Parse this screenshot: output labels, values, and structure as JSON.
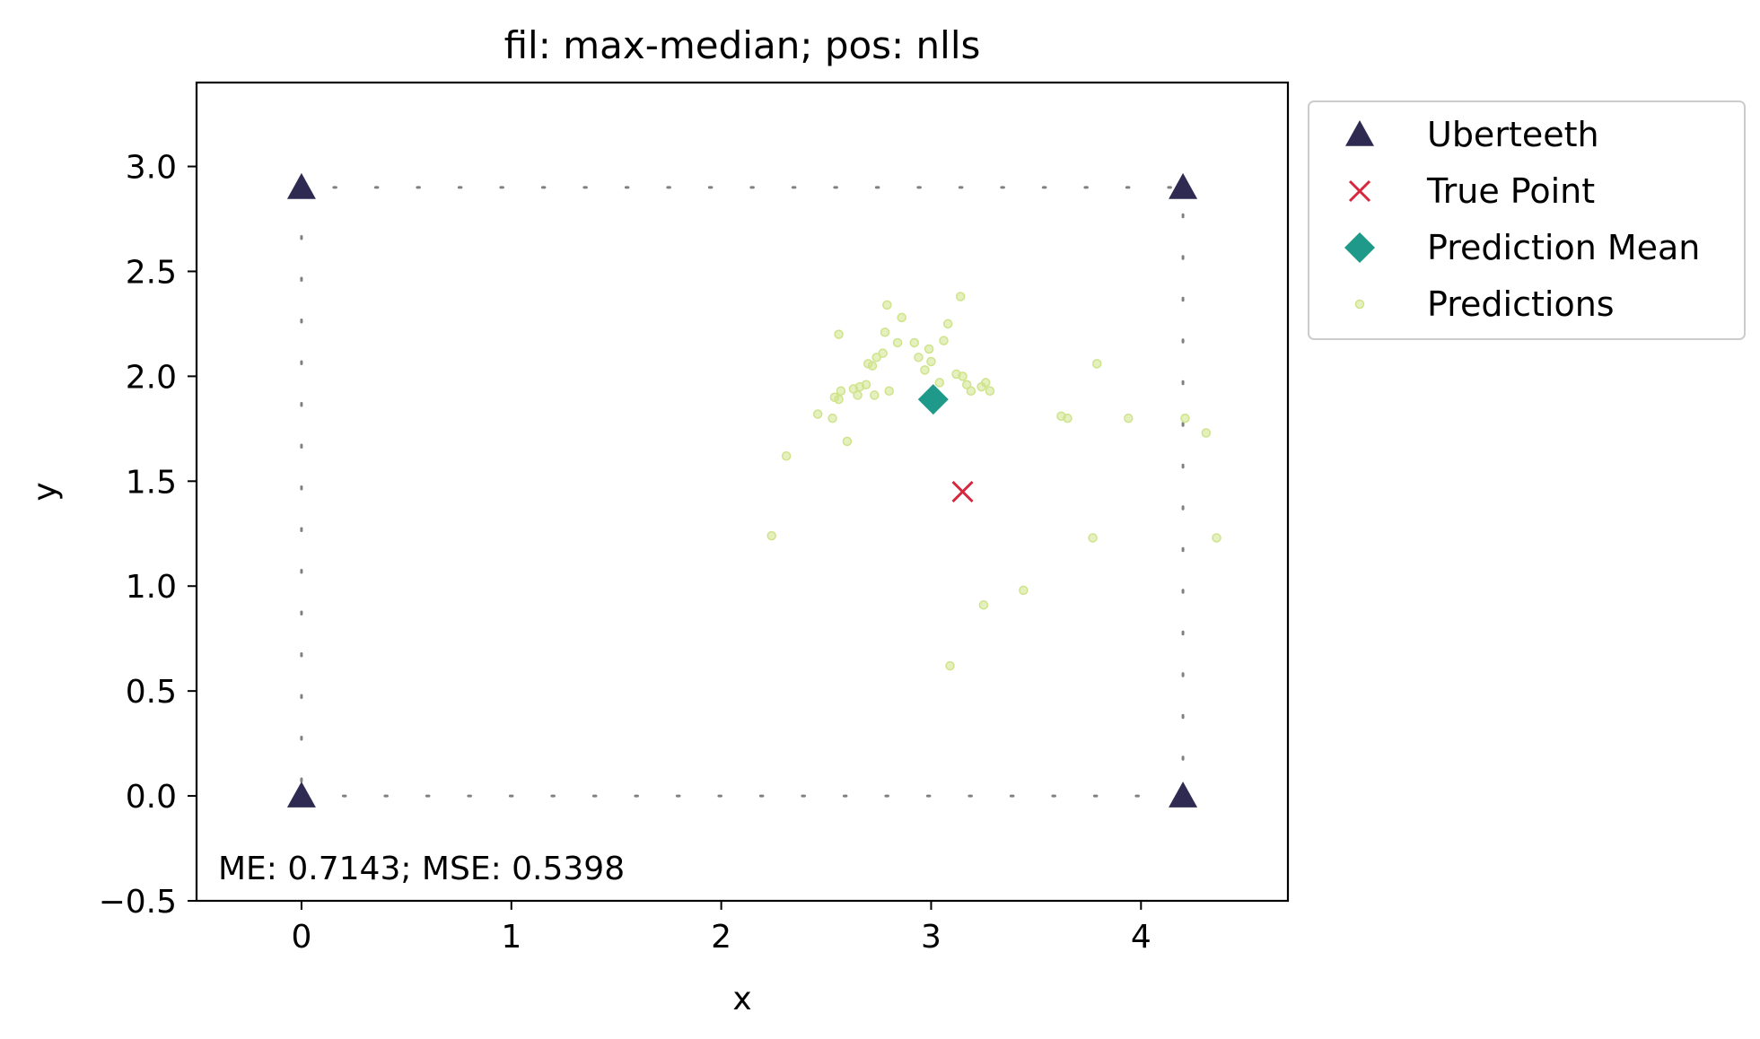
{
  "chart_data": {
    "type": "scatter",
    "title": "fil: max-median; pos: nlls",
    "xlabel": "x",
    "ylabel": "y",
    "xlim": [
      -0.5,
      4.7
    ],
    "ylim": [
      -0.5,
      3.4
    ],
    "xticks": [
      {
        "value": 0,
        "label": "0"
      },
      {
        "value": 1,
        "label": "1"
      },
      {
        "value": 2,
        "label": "2"
      },
      {
        "value": 3,
        "label": "3"
      },
      {
        "value": 4,
        "label": "4"
      }
    ],
    "yticks": [
      {
        "value": -0.5,
        "label": "−0.5"
      },
      {
        "value": 0.0,
        "label": "0.0"
      },
      {
        "value": 0.5,
        "label": "0.5"
      },
      {
        "value": 1.0,
        "label": "1.0"
      },
      {
        "value": 1.5,
        "label": "1.5"
      },
      {
        "value": 2.0,
        "label": "2.0"
      },
      {
        "value": 2.5,
        "label": "2.5"
      },
      {
        "value": 3.0,
        "label": "3.0"
      }
    ],
    "grid": false,
    "legend_placement": "outside top-right",
    "annotation": "ME: 0.7143;  MSE: 0.5398",
    "boundary": [
      [
        0,
        0
      ],
      [
        4.2,
        0
      ],
      [
        4.2,
        2.9
      ],
      [
        0,
        2.9
      ]
    ],
    "series": [
      {
        "name": "Uberteeth",
        "marker": "triangle",
        "color": "#2e2a52",
        "points": [
          [
            0,
            0
          ],
          [
            4.2,
            0
          ],
          [
            4.2,
            2.9
          ],
          [
            0,
            2.9
          ]
        ]
      },
      {
        "name": "True Point",
        "marker": "x",
        "color": "#d6273e",
        "points": [
          [
            3.15,
            1.45
          ]
        ]
      },
      {
        "name": "Prediction Mean",
        "marker": "diamond",
        "color": "#1f9a8a",
        "points": [
          [
            3.01,
            1.89
          ]
        ]
      },
      {
        "name": "Predictions",
        "marker": "dot",
        "color": "#cfe38a",
        "points": [
          [
            2.24,
            1.24
          ],
          [
            2.31,
            1.62
          ],
          [
            2.46,
            1.82
          ],
          [
            2.53,
            1.8
          ],
          [
            2.54,
            1.9
          ],
          [
            2.56,
            1.89
          ],
          [
            2.57,
            1.93
          ],
          [
            2.56,
            2.2
          ],
          [
            2.6,
            1.69
          ],
          [
            2.63,
            1.94
          ],
          [
            2.65,
            1.91
          ],
          [
            2.66,
            1.95
          ],
          [
            2.69,
            1.96
          ],
          [
            2.7,
            2.06
          ],
          [
            2.72,
            2.05
          ],
          [
            2.73,
            1.91
          ],
          [
            2.74,
            2.09
          ],
          [
            2.77,
            2.11
          ],
          [
            2.78,
            2.21
          ],
          [
            2.79,
            2.34
          ],
          [
            2.8,
            1.93
          ],
          [
            2.84,
            2.16
          ],
          [
            2.86,
            2.28
          ],
          [
            2.92,
            2.16
          ],
          [
            2.94,
            2.09
          ],
          [
            2.97,
            2.03
          ],
          [
            2.99,
            2.13
          ],
          [
            3.0,
            2.07
          ],
          [
            3.06,
            2.17
          ],
          [
            3.08,
            2.25
          ],
          [
            3.12,
            2.01
          ],
          [
            3.14,
            2.38
          ],
          [
            3.15,
            2.0
          ],
          [
            3.17,
            1.96
          ],
          [
            3.19,
            1.93
          ],
          [
            3.04,
            1.97
          ],
          [
            3.24,
            1.95
          ],
          [
            3.26,
            1.97
          ],
          [
            3.28,
            1.93
          ],
          [
            3.25,
            0.91
          ],
          [
            3.09,
            0.62
          ],
          [
            3.44,
            0.98
          ],
          [
            3.62,
            1.81
          ],
          [
            3.65,
            1.8
          ],
          [
            3.77,
            1.23
          ],
          [
            3.79,
            2.06
          ],
          [
            3.94,
            1.8
          ],
          [
            4.21,
            1.8
          ],
          [
            4.31,
            1.73
          ],
          [
            4.36,
            1.23
          ]
        ]
      }
    ]
  }
}
